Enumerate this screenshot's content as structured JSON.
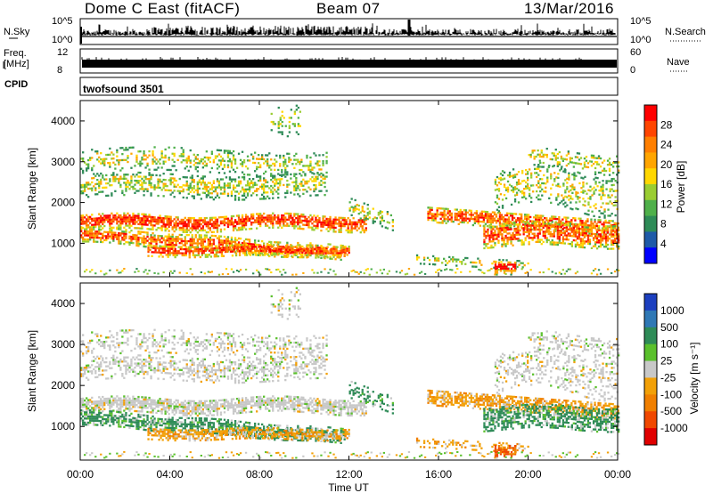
{
  "header": {
    "title": "Dome C East (fitACF)",
    "beam": "Beam 07",
    "date": "13/Mar/2016"
  },
  "left_labels": {
    "nsky": "N.Sky",
    "freq": "Freq.",
    "mhz": "[MHz]",
    "cpid": "CPID"
  },
  "right_labels": {
    "nsearch": "N.Search",
    "nave": "Nave"
  },
  "cpid_text": "twofsound 3501",
  "colors": {
    "power_scale": [
      "#0000ff",
      "#1e5aa8",
      "#2e8b57",
      "#4fb04a",
      "#9acd32",
      "#ffd700",
      "#ffa500",
      "#ff7f00",
      "#ff4500",
      "#ff0000"
    ],
    "velocity_scale": [
      "#1c3fbf",
      "#2f78b5",
      "#2e8b57",
      "#5ac02c",
      "#c8c8c8",
      "#f2a007",
      "#f07f00",
      "#f04800",
      "#e00000"
    ]
  },
  "chart_data": [
    {
      "type": "line",
      "name": "nsky-nsearch-panel",
      "y_ticks_left": [
        "10^5",
        "10^0"
      ],
      "y_ticks_right": [
        "10^5",
        "10^0"
      ]
    },
    {
      "type": "line",
      "name": "freq-nave-panel",
      "y_ticks_left": [
        "12",
        "8"
      ],
      "y_ticks_right": [
        "60",
        "0"
      ]
    },
    {
      "type": "heatmap",
      "name": "power-panel",
      "ylabel": "Slant Range [km]",
      "y_ticks": [
        "4000",
        "3000",
        "2000",
        "1000"
      ],
      "ylim": [
        180,
        4500
      ],
      "xlim": [
        0,
        24
      ],
      "colorbar": {
        "label": "Power [dB]",
        "ticks": [
          "28",
          "24",
          "20",
          "16",
          "12",
          "8",
          "4"
        ],
        "range": [
          0,
          30
        ]
      }
    },
    {
      "type": "heatmap",
      "name": "velocity-panel",
      "ylabel": "Slant Range [km]",
      "y_ticks": [
        "4000",
        "3000",
        "2000",
        "1000"
      ],
      "ylim": [
        180,
        4500
      ],
      "xlim": [
        0,
        24
      ],
      "xlabel": "Time UT",
      "x_ticks": [
        "00:00",
        "04:00",
        "08:00",
        "12:00",
        "16:00",
        "20:00",
        "00:00"
      ],
      "colorbar": {
        "label": "Velocity [m s⁻¹]",
        "ticks": [
          "1000",
          "500",
          "100",
          "25",
          "-25",
          "-100",
          "-500",
          "-1000"
        ]
      }
    }
  ]
}
